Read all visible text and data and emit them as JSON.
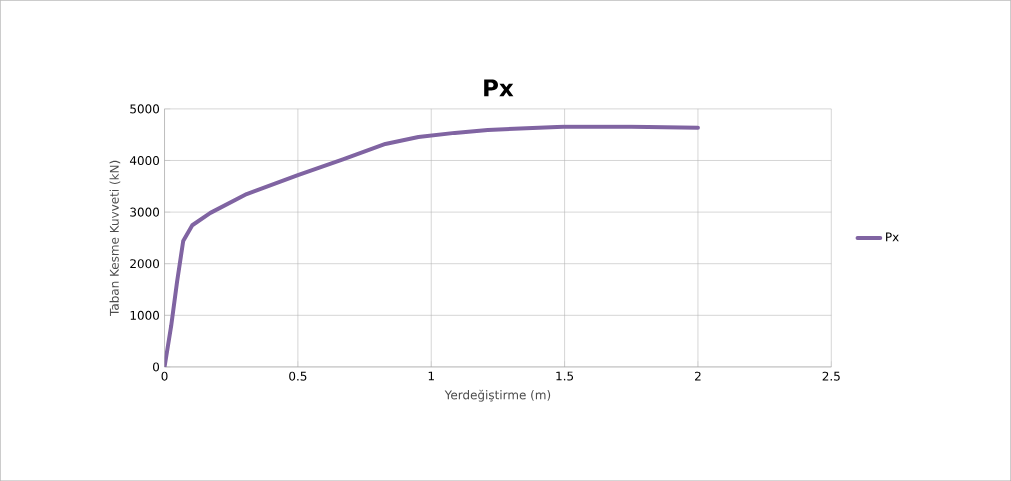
{
  "chart_data": {
    "type": "line",
    "title": "Px",
    "xlabel": "Yerdeğiştirme  (m)",
    "ylabel": "Taban Kesme Kuvveti (kN)",
    "xlim": [
      0,
      2.5
    ],
    "xticks": [
      0,
      0.5,
      1,
      1.5,
      2,
      2.5
    ],
    "ylim": [
      0,
      5000
    ],
    "yticks": [
      0,
      1000,
      2000,
      3000,
      4000,
      5000
    ],
    "grid": true,
    "legend": "right",
    "marker": "none",
    "series": [
      {
        "name": "Px",
        "color": "#8064a2",
        "x": [
          0,
          0.025,
          0.047,
          0.07,
          0.104,
          0.172,
          0.308,
          0.5,
          0.669,
          0.828,
          0.952,
          1.088,
          1.212,
          1.495,
          1.75,
          2.0
        ],
        "values": [
          0,
          800,
          1650,
          2440,
          2745,
          2985,
          3350,
          3715,
          4020,
          4320,
          4455,
          4535,
          4592,
          4653,
          4655,
          4635
        ]
      }
    ]
  }
}
